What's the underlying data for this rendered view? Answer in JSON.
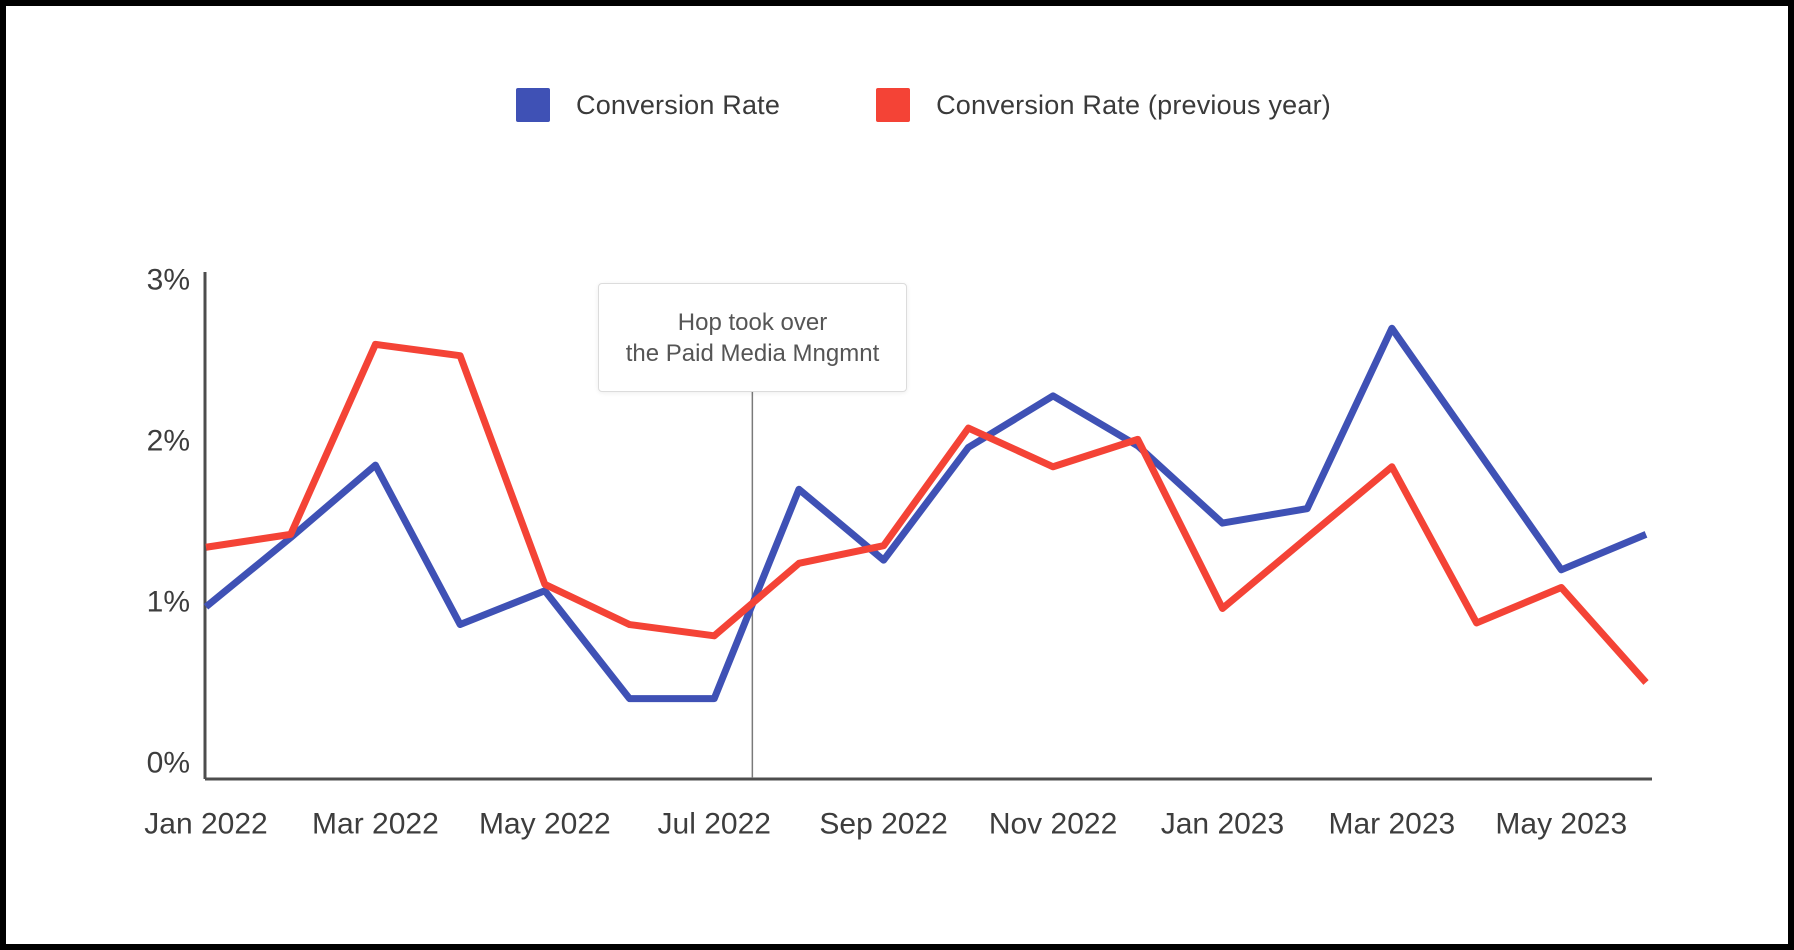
{
  "frame": {
    "border_color": "#000000",
    "background": "#ffffff"
  },
  "legend": {
    "items": [
      {
        "label": "Conversion Rate",
        "color": "#3F51B5"
      },
      {
        "label": "Conversion Rate (previous year)",
        "color": "#F44336"
      }
    ]
  },
  "chart_data": {
    "type": "line",
    "x": [
      "Jan 2022",
      "Feb 2022",
      "Mar 2022",
      "Apr 2022",
      "May 2022",
      "Jun 2022",
      "Jul 2022",
      "Aug 2022",
      "Sep 2022",
      "Oct 2022",
      "Nov 2022",
      "Dec 2022",
      "Jan 2023",
      "Feb 2023",
      "Mar 2023",
      "Apr 2023",
      "May 2023",
      "Jun 2023"
    ],
    "x_tick_labels": [
      "Jan 2022",
      "Mar 2022",
      "May 2022",
      "Jul 2022",
      "Sep 2022",
      "Nov 2022",
      "Jan 2023",
      "Mar 2023",
      "May 2023"
    ],
    "y_tick_labels": [
      "0%",
      "1%",
      "2%",
      "3%"
    ],
    "y_ticks": [
      0,
      1,
      2,
      3
    ],
    "ylim": [
      0,
      3
    ],
    "grid": "off",
    "legend_position": "top-center",
    "series": [
      {
        "name": "Conversion Rate",
        "color": "#3F51B5",
        "values": [
          0.97,
          1.4,
          1.85,
          0.86,
          1.07,
          0.4,
          0.4,
          1.7,
          1.26,
          1.96,
          2.28,
          1.97,
          1.49,
          1.58,
          2.7,
          1.95,
          1.2,
          1.42
        ]
      },
      {
        "name": "Conversion Rate (previous year)",
        "color": "#F44336",
        "values": [
          1.34,
          1.42,
          2.6,
          2.53,
          1.11,
          0.86,
          0.79,
          1.24,
          1.35,
          2.08,
          1.84,
          2.01,
          0.96,
          1.4,
          1.84,
          0.87,
          1.09,
          0.5
        ]
      }
    ],
    "annotation": {
      "lines": [
        "Hop took over",
        "the Paid Media Mngmnt"
      ],
      "x_label": "Jul 2022",
      "x_index": 6.45
    },
    "axis_color": "#4d4d4d",
    "tick_label_color": "#3d3d3d",
    "annotation_line_color": "#7a7a7a"
  }
}
